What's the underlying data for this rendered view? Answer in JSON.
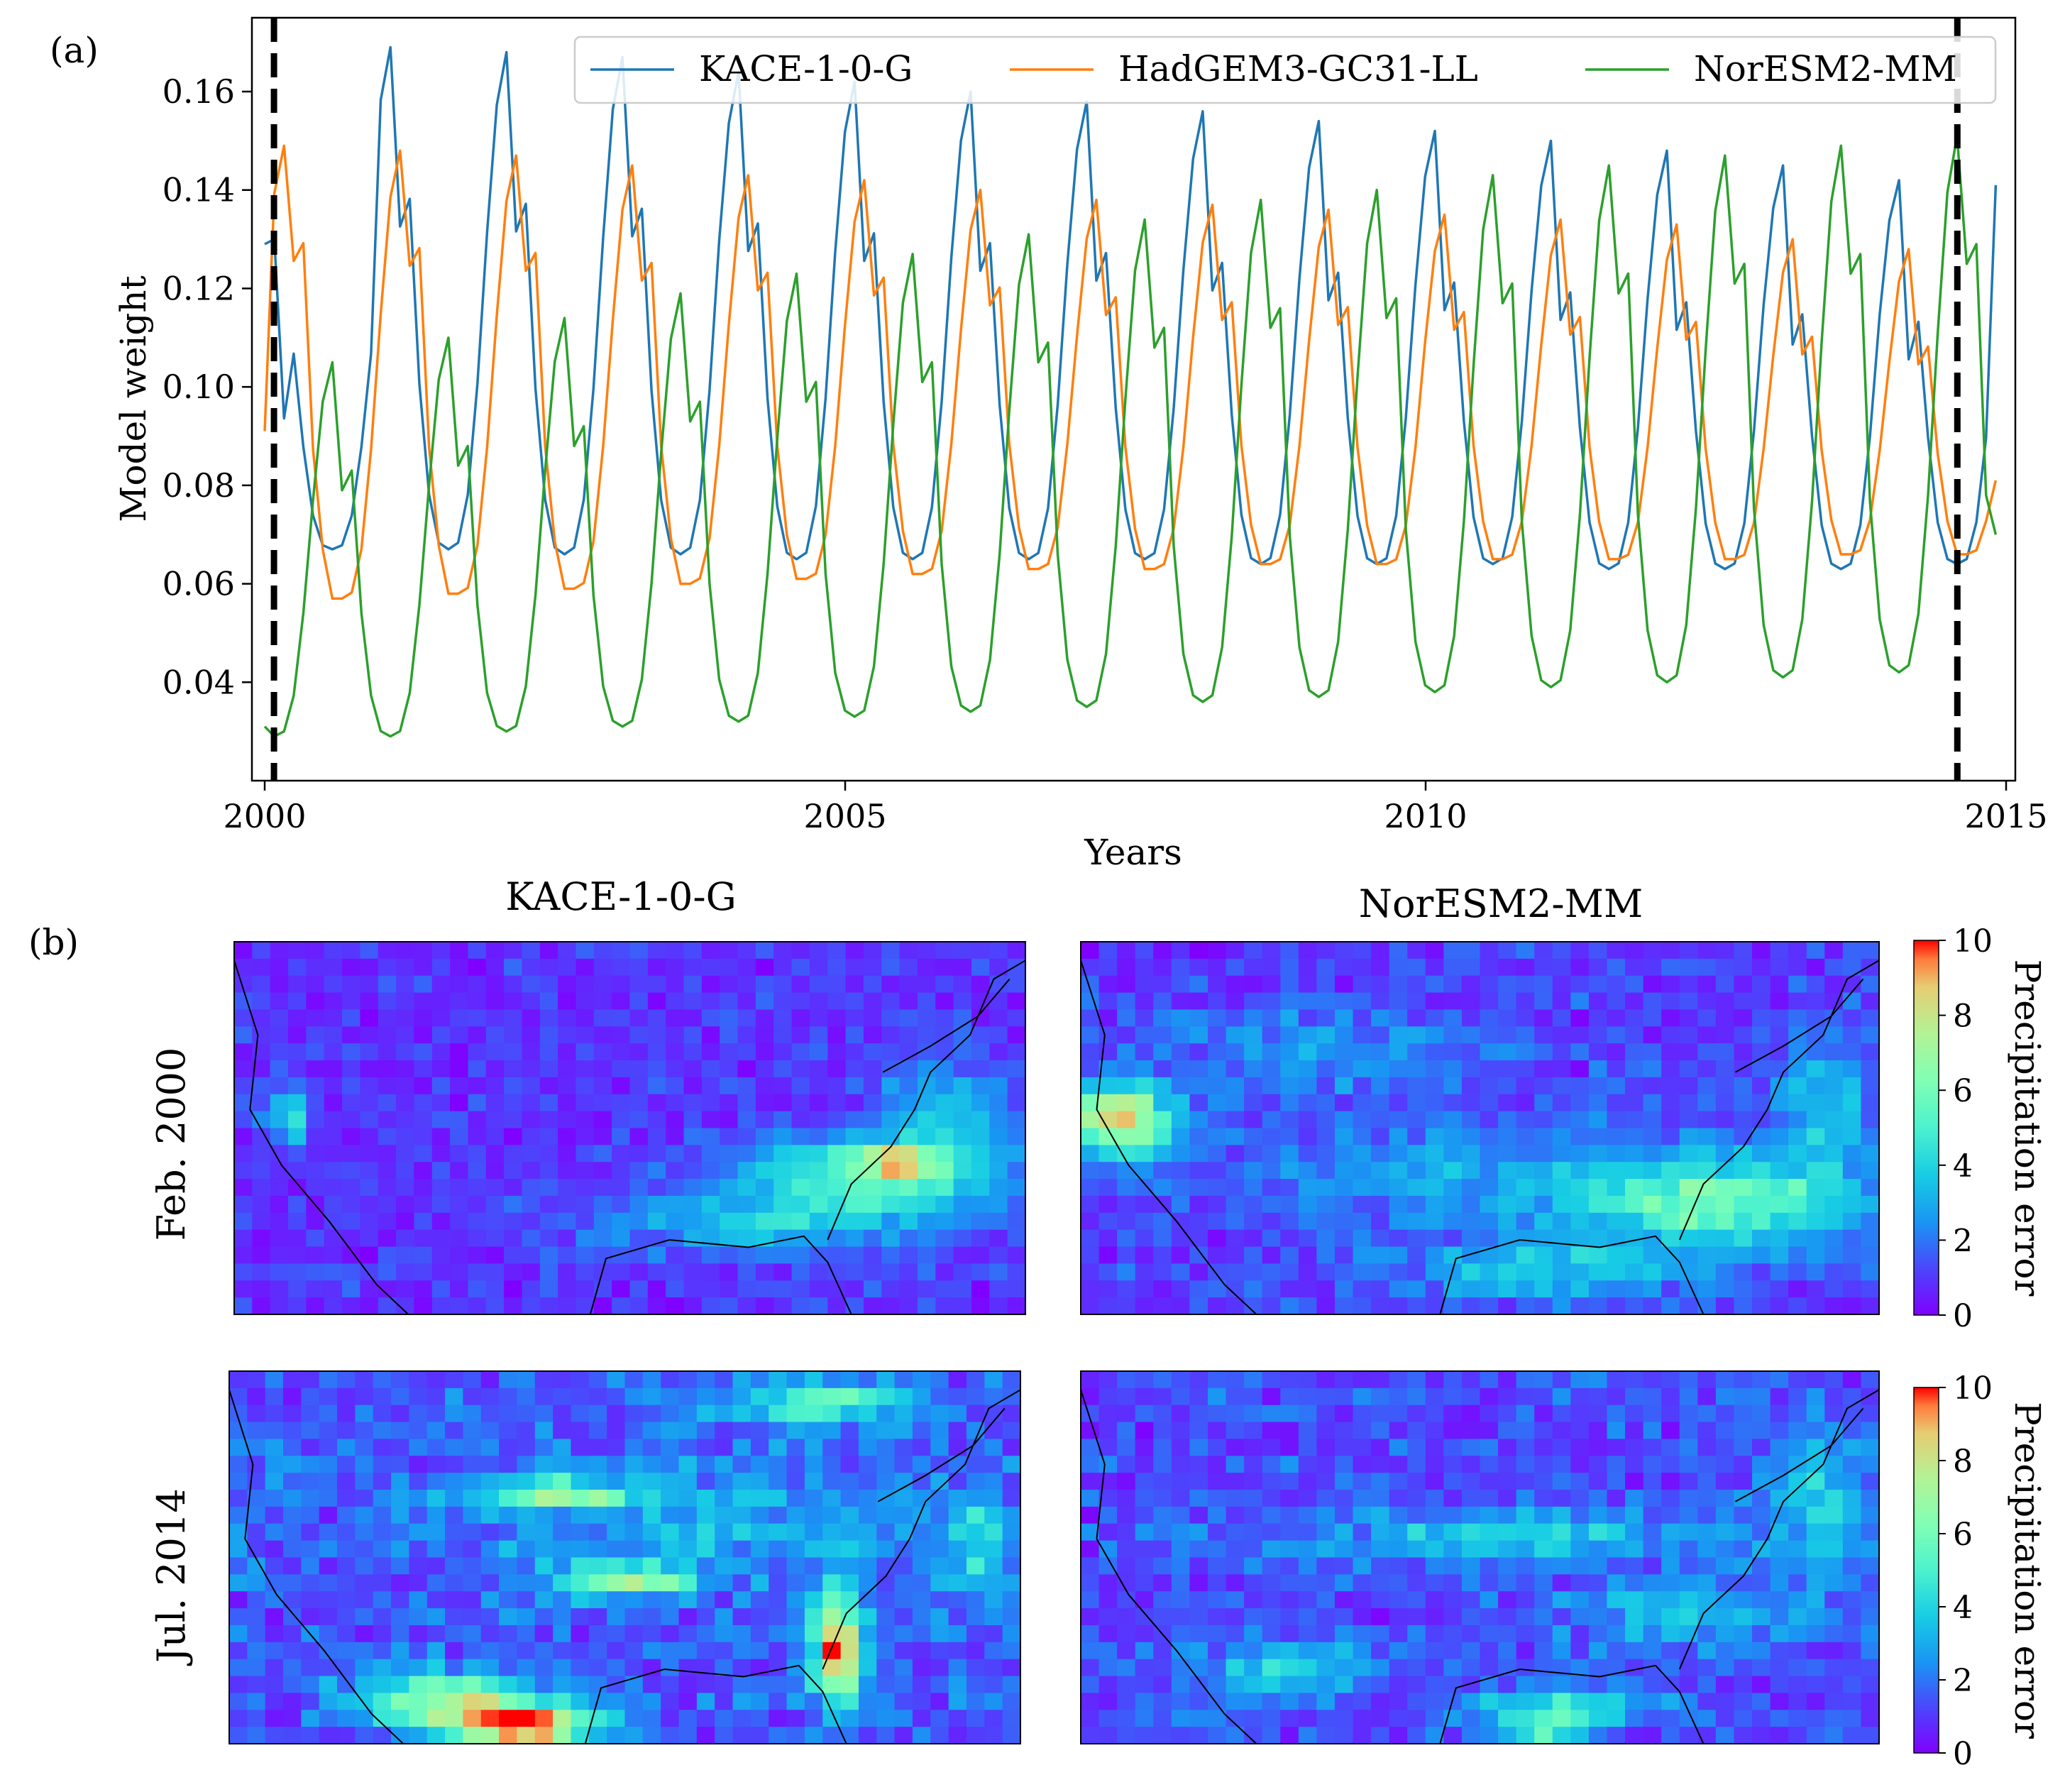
{
  "figure": {
    "panel_a_label": "(a)",
    "panel_b_label": "(b)"
  },
  "chart_data": [
    {
      "type": "line",
      "panel": "(a)",
      "title": "",
      "xlabel": "Years",
      "ylabel": "Model weight",
      "xlim": [
        2000,
        2015
      ],
      "ylim": [
        0.02,
        0.175
      ],
      "xticks": [
        2000,
        2005,
        2010,
        2015
      ],
      "yticks": [
        0.04,
        0.06,
        0.08,
        0.1,
        0.12,
        0.14,
        0.16
      ],
      "ytick_labels": [
        "0.04",
        "0.06",
        "0.08",
        "0.10",
        "0.12",
        "0.14",
        "0.16"
      ],
      "grid": false,
      "legend": {
        "placement": "top-right",
        "columns": 3
      },
      "dashed_vlines": [
        2000.08,
        2014.58
      ],
      "x_start": 2000.0,
      "x_step": 0.0833,
      "series": [
        {
          "name": "KACE-1-0-G",
          "color": "#1f77b4",
          "peak_month": 1,
          "trough_month": 7,
          "peaks": [
            0.13,
            0.169,
            0.168,
            0.167,
            0.164,
            0.162,
            0.16,
            0.158,
            0.156,
            0.154,
            0.152,
            0.15,
            0.148,
            0.145,
            0.142
          ],
          "troughs": [
            0.067,
            0.067,
            0.066,
            0.066,
            0.065,
            0.065,
            0.065,
            0.065,
            0.064,
            0.064,
            0.064,
            0.063,
            0.063,
            0.063,
            0.064
          ],
          "shoulder_offset": 0.028,
          "first_value": 0.129,
          "last_value": 0.141
        },
        {
          "name": "HadGEM3-GC31-LL",
          "color": "#ff7f0e",
          "peak_month": 2,
          "trough_month": 7,
          "peaks": [
            0.149,
            0.148,
            0.147,
            0.145,
            0.143,
            0.142,
            0.14,
            0.138,
            0.137,
            0.136,
            0.135,
            0.134,
            0.133,
            0.13,
            0.128
          ],
          "troughs": [
            0.057,
            0.058,
            0.059,
            0.06,
            0.061,
            0.062,
            0.063,
            0.063,
            0.064,
            0.064,
            0.065,
            0.065,
            0.065,
            0.066,
            0.066
          ],
          "shoulder_offset": 0.018,
          "first_value": 0.091,
          "last_value": 0.081
        },
        {
          "name": "NorESM2-MM",
          "color": "#2ca02c",
          "peak_month": 7,
          "trough_month": 1,
          "peaks": [
            0.105,
            0.11,
            0.114,
            0.119,
            0.123,
            0.127,
            0.131,
            0.134,
            0.138,
            0.14,
            0.143,
            0.145,
            0.147,
            0.149,
            0.151
          ],
          "troughs": [
            0.029,
            0.029,
            0.03,
            0.031,
            0.032,
            0.033,
            0.034,
            0.035,
            0.036,
            0.037,
            0.038,
            0.039,
            0.04,
            0.041,
            0.042
          ],
          "shoulder_offset": 0.02,
          "first_value": 0.031,
          "last_value": 0.07
        }
      ]
    },
    {
      "type": "heatmap",
      "panel": "(b)",
      "columns": [
        "KACE-1-0-G",
        "NorESM2-MM"
      ],
      "rows": [
        "Feb. 2000",
        "Jul. 2014"
      ],
      "colorbar": {
        "label": "Precipitation error",
        "range": [
          0,
          10
        ],
        "ticks": [
          0,
          2,
          4,
          6,
          8,
          10
        ],
        "colormap": "rainbow"
      },
      "grid_size": [
        44,
        22
      ],
      "maps": [
        {
          "row": "Feb. 2000",
          "column": "KACE-1-0-G",
          "base": 0.9,
          "hotspots": [
            [
              0.8,
              0.62,
              0.16,
              0.1,
              4.2
            ],
            [
              0.84,
              0.59,
              0.05,
              0.04,
              4.5
            ],
            [
              0.68,
              0.75,
              0.22,
              0.1,
              2.4
            ],
            [
              0.07,
              0.47,
              0.03,
              0.08,
              3.5
            ],
            [
              0.9,
              0.45,
              0.08,
              0.14,
              2.6
            ]
          ]
        },
        {
          "row": "Feb. 2000",
          "column": "NorESM2-MM",
          "base": 1.1,
          "hotspots": [
            [
              0.8,
              0.7,
              0.18,
              0.12,
              4.8
            ],
            [
              0.05,
              0.48,
              0.06,
              0.09,
              8.0
            ],
            [
              0.46,
              0.62,
              0.28,
              0.14,
              1.6
            ],
            [
              0.3,
              0.3,
              0.22,
              0.12,
              1.5
            ],
            [
              0.58,
              0.88,
              0.18,
              0.08,
              2.6
            ],
            [
              0.93,
              0.45,
              0.07,
              0.18,
              2.5
            ]
          ]
        },
        {
          "row": "Jul. 2014",
          "column": "KACE-1-0-G",
          "base": 1.5,
          "hotspots": [
            [
              0.37,
              0.95,
              0.09,
              0.06,
              9.0
            ],
            [
              0.26,
              0.88,
              0.1,
              0.08,
              5.0
            ],
            [
              0.77,
              0.75,
              0.03,
              0.16,
              8.0
            ],
            [
              0.5,
              0.56,
              0.08,
              0.04,
              5.5
            ],
            [
              0.42,
              0.33,
              0.1,
              0.04,
              4.5
            ],
            [
              0.75,
              0.08,
              0.12,
              0.06,
              3.5
            ],
            [
              0.95,
              0.48,
              0.04,
              0.15,
              3.0
            ],
            [
              0.6,
              0.42,
              0.3,
              0.18,
              1.6
            ]
          ]
        },
        {
          "row": "Jul. 2014",
          "column": "NorESM2-MM",
          "base": 1.3,
          "hotspots": [
            [
              0.55,
              0.44,
              0.24,
              0.07,
              2.6
            ],
            [
              0.6,
              0.9,
              0.12,
              0.05,
              3.4
            ],
            [
              0.58,
              0.96,
              0.05,
              0.03,
              5.0
            ],
            [
              0.25,
              0.8,
              0.1,
              0.08,
              2.8
            ],
            [
              0.75,
              0.65,
              0.14,
              0.1,
              2.2
            ],
            [
              0.93,
              0.35,
              0.07,
              0.2,
              2.5
            ]
          ]
        }
      ]
    }
  ]
}
